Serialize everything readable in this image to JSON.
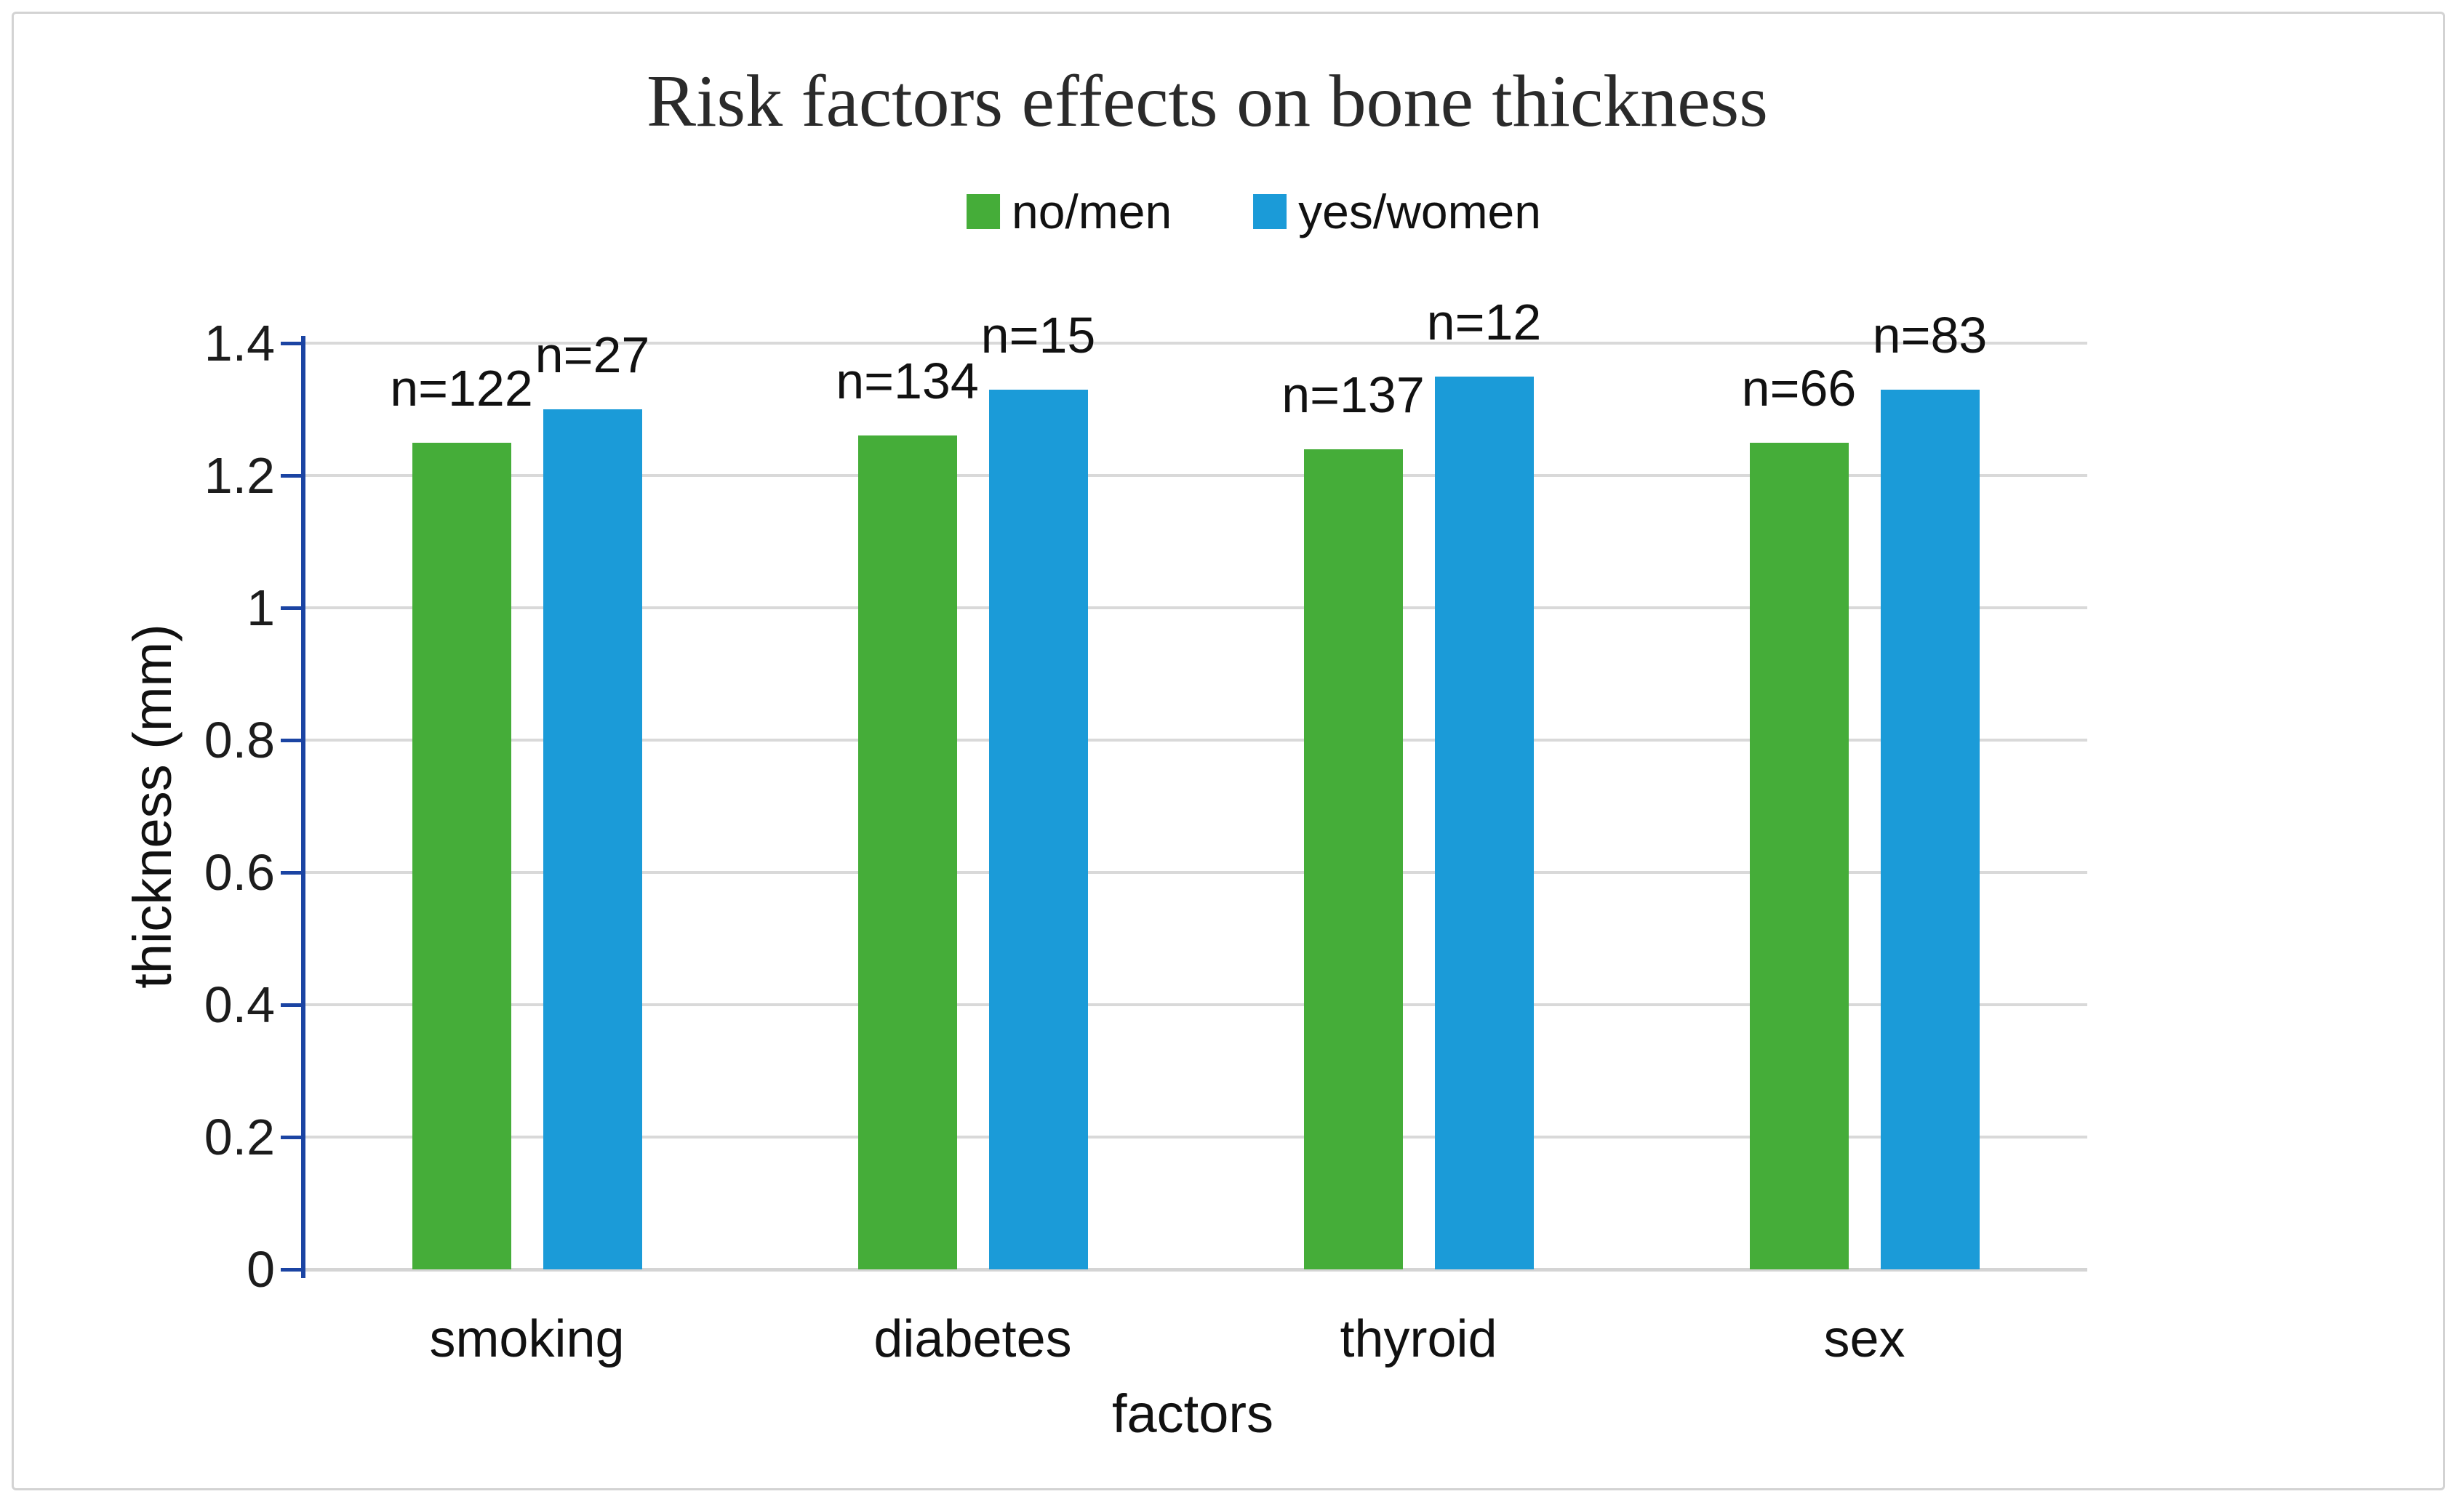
{
  "figure": {
    "title": "Risk factors effects on bone thickness"
  },
  "legend": {
    "items": [
      {
        "label": "no/men",
        "color": "#45ad39"
      },
      {
        "label": "yes/women",
        "color": "#1b9bd8"
      }
    ]
  },
  "chart_data": {
    "type": "bar",
    "title": "Risk factors effects on bone thickness",
    "xlabel": "factors",
    "ylabel": "thickness (mm)",
    "categories": [
      "smoking",
      "diabetes",
      "thyroid",
      "sex"
    ],
    "series": [
      {
        "name": "no/men",
        "color": "#45ad39",
        "values": [
          1.25,
          1.26,
          1.24,
          1.25
        ],
        "bar_labels": [
          "n=122",
          "n=134",
          "n=137",
          "n=66"
        ]
      },
      {
        "name": "yes/women",
        "color": "#1b9bd8",
        "values": [
          1.3,
          1.33,
          1.35,
          1.33
        ],
        "bar_labels": [
          "n=27",
          "n=15",
          "n=12",
          "n=83"
        ]
      }
    ],
    "ylim": [
      0,
      1.4
    ],
    "yticks": [
      0,
      0.2,
      0.4,
      0.6,
      0.8,
      1,
      1.2,
      1.4
    ],
    "ytick_labels": [
      "0",
      "0.2",
      "0.4",
      "0.6",
      "0.8",
      "1",
      "1.2",
      "1.4"
    ],
    "grid": "horizontal",
    "legend_position": "top-center"
  },
  "colors": {
    "axis_line": "#1b44a3",
    "gridline": "#d9d9d9",
    "baseline": "#d4d4d4",
    "frame_border": "#d3d3d3",
    "text": "#1c1c1c"
  }
}
